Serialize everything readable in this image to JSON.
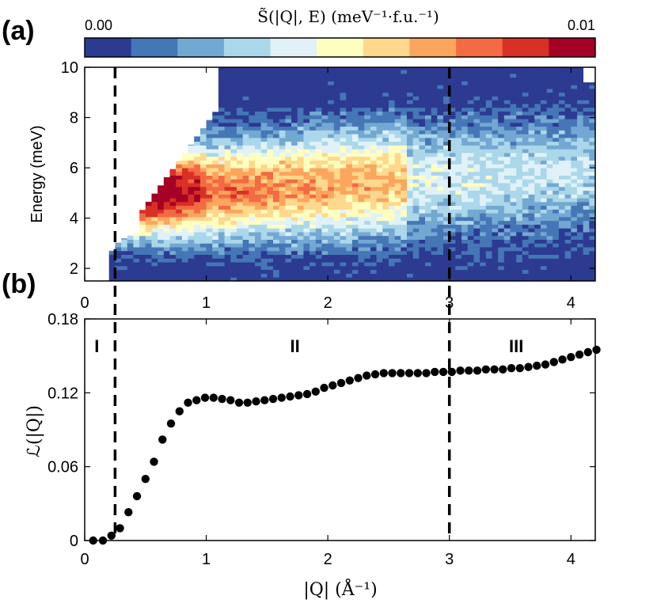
{
  "chart_data": [
    {
      "type": "heatmap",
      "panel_label": "(a)",
      "colorbar": {
        "label_html": "S̃(|Q|, E) (meV⁻¹·f.u.⁻¹)",
        "min_label": "0.00",
        "max_label": "0.01",
        "range": [
          0.0,
          0.01
        ],
        "colors": [
          "#2c3a91",
          "#4576b6",
          "#73a8d2",
          "#abd7ea",
          "#e0f2f8",
          "#fefec0",
          "#fed88c",
          "#fca55c",
          "#f36a43",
          "#d93025",
          "#a50026"
        ]
      },
      "ylabel": "Energy (meV)",
      "xlim": [
        0,
        4.2
      ],
      "ylim": [
        1.5,
        10
      ],
      "xticks": [
        "0",
        "1",
        "2",
        "3",
        "4"
      ],
      "yticks": [
        "2",
        "4",
        "6",
        "8",
        "10"
      ],
      "dashed_lines_x": [
        0.25,
        3.0
      ]
    },
    {
      "type": "scatter",
      "panel_label": "(b)",
      "ylabel": "ℒ(|Q|)",
      "xlabel": "|Q| (Å⁻¹)",
      "xlim": [
        0,
        4.2
      ],
      "ylim": [
        0,
        0.18
      ],
      "xticks": [
        "0",
        "1",
        "2",
        "3",
        "4"
      ],
      "yticks": [
        "0",
        "0.06",
        "0.12",
        "0.18"
      ],
      "dashed_lines_x": [
        0.25,
        3.0
      ],
      "regions": [
        {
          "label": "I",
          "x": 0.1
        },
        {
          "label": "II",
          "x": 1.73
        },
        {
          "label": "III",
          "x": 3.55
        }
      ],
      "x": [
        0.07,
        0.15,
        0.22,
        0.29,
        0.36,
        0.43,
        0.5,
        0.57,
        0.64,
        0.71,
        0.78,
        0.85,
        0.92,
        0.99,
        1.06,
        1.13,
        1.2,
        1.27,
        1.34,
        1.41,
        1.48,
        1.55,
        1.62,
        1.69,
        1.76,
        1.83,
        1.9,
        1.97,
        2.04,
        2.11,
        2.18,
        2.25,
        2.32,
        2.39,
        2.46,
        2.53,
        2.6,
        2.67,
        2.74,
        2.81,
        2.88,
        2.95,
        3.02,
        3.09,
        3.16,
        3.23,
        3.3,
        3.37,
        3.44,
        3.51,
        3.58,
        3.65,
        3.72,
        3.79,
        3.86,
        3.93,
        4.0,
        4.07,
        4.14,
        4.21
      ],
      "y": [
        0.0,
        0.0,
        0.004,
        0.01,
        0.023,
        0.036,
        0.05,
        0.064,
        0.082,
        0.095,
        0.105,
        0.112,
        0.114,
        0.116,
        0.116,
        0.115,
        0.114,
        0.112,
        0.112,
        0.113,
        0.114,
        0.115,
        0.116,
        0.117,
        0.118,
        0.119,
        0.121,
        0.124,
        0.126,
        0.128,
        0.13,
        0.132,
        0.134,
        0.135,
        0.136,
        0.136,
        0.136,
        0.136,
        0.136,
        0.136,
        0.137,
        0.137,
        0.137,
        0.138,
        0.138,
        0.138,
        0.139,
        0.139,
        0.139,
        0.14,
        0.14,
        0.141,
        0.142,
        0.143,
        0.145,
        0.147,
        0.149,
        0.151,
        0.153,
        0.155
      ]
    }
  ]
}
